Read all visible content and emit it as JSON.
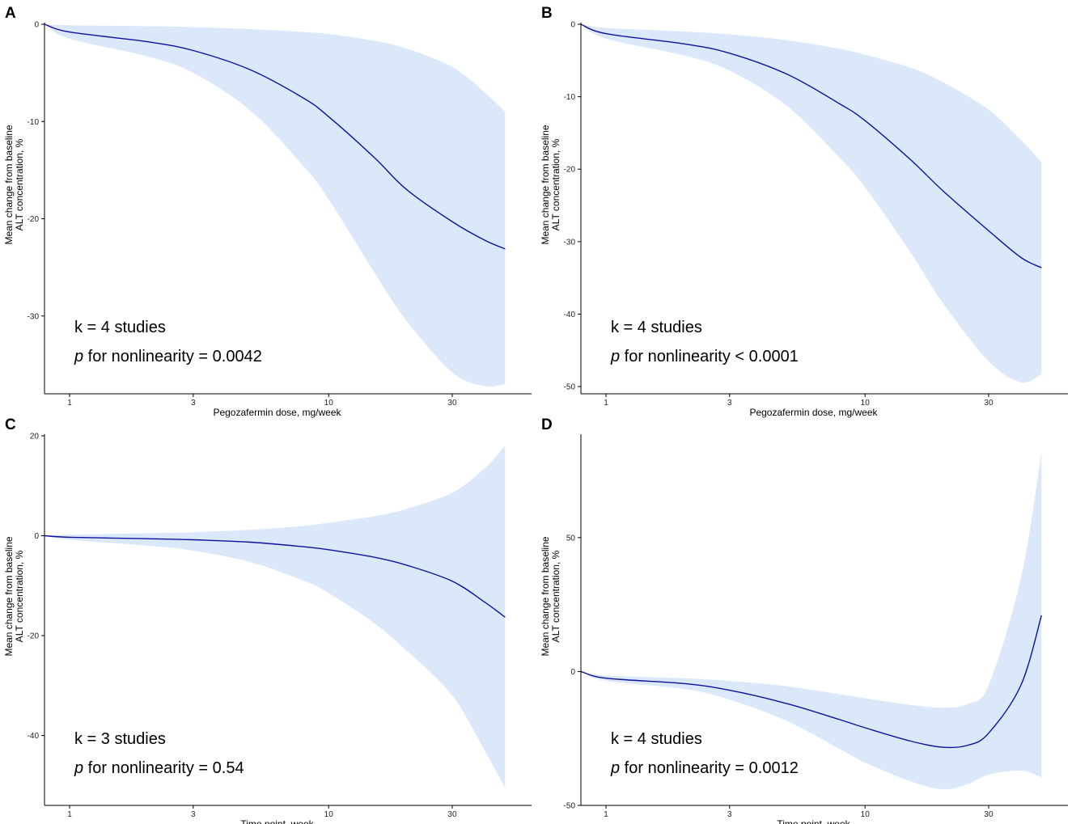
{
  "chart_data": [
    {
      "panel": "A",
      "type": "line",
      "xscale": "log",
      "xlim": [
        0.8,
        50
      ],
      "ylim": [
        -38,
        0
      ],
      "xticks": [
        1,
        3,
        10,
        30
      ],
      "xtick_labels": [
        "1",
        "3",
        "10",
        "30"
      ],
      "yticks": [
        0,
        -10,
        -20,
        -30
      ],
      "ytick_labels": [
        "0",
        "-10",
        "-20",
        "-30"
      ],
      "xlabel": "Pegozafermin dose, mg/week",
      "ylabel_line1": "Mean change from baseline",
      "ylabel_line2": "ALT concentration, %",
      "annotation_k": "k = 4 studies",
      "annotation_p_italic": "p",
      "annotation_p_rest": " for nonlinearity = 0.0042",
      "series": [
        {
          "name": "estimate",
          "x": [
            0.8,
            1,
            2,
            3,
            5,
            8,
            10,
            15,
            20,
            30,
            40,
            48
          ],
          "y": [
            0,
            -0.8,
            -1.8,
            -2.7,
            -4.7,
            -7.6,
            -9.5,
            -13.7,
            -17.0,
            -20.3,
            -22.2,
            -23.1
          ]
        },
        {
          "name": "ci_upper",
          "x": [
            0.8,
            1,
            2,
            3,
            5,
            8,
            10,
            15,
            20,
            30,
            40,
            48
          ],
          "y": [
            0,
            -0.1,
            -0.2,
            -0.3,
            -0.5,
            -0.8,
            -1.0,
            -1.7,
            -2.5,
            -4.4,
            -7.0,
            -9.0
          ]
        },
        {
          "name": "ci_lower",
          "x": [
            0.8,
            1,
            2,
            3,
            5,
            8,
            10,
            15,
            20,
            30,
            40,
            48
          ],
          "y": [
            0,
            -1.5,
            -3.3,
            -5.0,
            -8.9,
            -14.6,
            -18.0,
            -25.5,
            -30.5,
            -35.8,
            -37.2,
            -37.0
          ]
        }
      ]
    },
    {
      "panel": "B",
      "type": "line",
      "xscale": "log",
      "xlim": [
        0.8,
        50
      ],
      "ylim": [
        -51,
        0
      ],
      "xticks": [
        1,
        3,
        10,
        30
      ],
      "xtick_labels": [
        "1",
        "3",
        "10",
        "30"
      ],
      "yticks": [
        0,
        -10,
        -20,
        -30,
        -40,
        -50
      ],
      "ytick_labels": [
        "0",
        "-10",
        "-20",
        "-30",
        "-40",
        "-50"
      ],
      "xlabel": "Pegozafermin dose, mg/week",
      "ylabel_line1": "Mean change from baseline",
      "ylabel_line2": "ALT concentration, %",
      "annotation_k": "k = 4 studies",
      "annotation_p_italic": "p",
      "annotation_p_rest": " for nonlinearity < 0.0001",
      "series": [
        {
          "name": "estimate",
          "x": [
            0.8,
            1,
            2,
            3,
            5,
            8,
            10,
            15,
            20,
            30,
            40,
            48
          ],
          "y": [
            0,
            -1.3,
            -2.7,
            -4.0,
            -6.9,
            -11.0,
            -13.3,
            -18.7,
            -23.0,
            -28.5,
            -32.2,
            -33.6
          ]
        },
        {
          "name": "ci_upper",
          "x": [
            0.8,
            1,
            2,
            3,
            5,
            8,
            10,
            15,
            20,
            30,
            40,
            48
          ],
          "y": [
            0,
            -0.5,
            -1.0,
            -1.4,
            -2.2,
            -3.4,
            -4.2,
            -6.0,
            -8.0,
            -11.8,
            -16.0,
            -19.0
          ]
        },
        {
          "name": "ci_lower",
          "x": [
            0.8,
            1,
            2,
            3,
            5,
            8,
            10,
            15,
            20,
            30,
            40,
            48
          ],
          "y": [
            0,
            -2.0,
            -4.3,
            -6.4,
            -11.3,
            -18.5,
            -22.5,
            -31.5,
            -38.5,
            -46.5,
            -49.4,
            -48.3
          ]
        }
      ]
    },
    {
      "panel": "C",
      "type": "line",
      "xscale": "log",
      "xlim": [
        0.8,
        50
      ],
      "ylim": [
        -54,
        20
      ],
      "xticks": [
        1,
        3,
        10,
        30
      ],
      "xtick_labels": [
        "1",
        "3",
        "10",
        "30"
      ],
      "yticks": [
        20,
        0,
        -20,
        -40
      ],
      "ytick_labels": [
        "20",
        "0",
        "-20",
        "-40"
      ],
      "xlabel": "Time point, week",
      "ylabel_line1": "Mean change from baseline",
      "ylabel_line2": "ALT concentration, %",
      "annotation_k": "k = 3 studies",
      "annotation_p_italic": "p",
      "annotation_p_rest": " for nonlinearity = 0.54",
      "series": [
        {
          "name": "estimate",
          "x": [
            0.8,
            1,
            2,
            3,
            5,
            8,
            10,
            15,
            20,
            30,
            40,
            48
          ],
          "y": [
            0,
            -0.3,
            -0.6,
            -0.8,
            -1.3,
            -2.2,
            -2.8,
            -4.3,
            -5.9,
            -9.1,
            -13.3,
            -16.3
          ]
        },
        {
          "name": "ci_upper",
          "x": [
            0.8,
            1,
            2,
            3,
            5,
            8,
            10,
            15,
            20,
            30,
            40,
            48
          ],
          "y": [
            0,
            0.2,
            0.5,
            0.7,
            1.2,
            2.0,
            2.6,
            3.9,
            5.4,
            8.6,
            13.5,
            18.0
          ]
        },
        {
          "name": "ci_lower",
          "x": [
            0.8,
            1,
            2,
            3,
            5,
            8,
            10,
            15,
            20,
            30,
            40,
            48
          ],
          "y": [
            0,
            -0.8,
            -2.0,
            -3.0,
            -5.3,
            -9.0,
            -11.5,
            -17.5,
            -23.0,
            -32.0,
            -43.0,
            -50.5
          ]
        }
      ]
    },
    {
      "panel": "D",
      "type": "line",
      "xscale": "log",
      "xlim": [
        0.8,
        50
      ],
      "ylim": [
        -50,
        88
      ],
      "xticks": [
        1,
        3,
        10,
        30
      ],
      "xtick_labels": [
        "1",
        "3",
        "10",
        "30"
      ],
      "yticks": [
        50,
        0,
        -50
      ],
      "ytick_labels": [
        "50",
        "0",
        "-50"
      ],
      "xlabel": "Time point, week",
      "ylabel_line1": "Mean change from baseline",
      "ylabel_line2": "ALT concentration, %",
      "annotation_k": "k = 4 studies",
      "annotation_p_italic": "p",
      "annotation_p_rest": " for nonlinearity = 0.0012",
      "series": [
        {
          "name": "estimate",
          "x": [
            0.8,
            1,
            2,
            3,
            5,
            8,
            10,
            15,
            20,
            25,
            30,
            40,
            48
          ],
          "y": [
            0,
            -2.5,
            -4.5,
            -7.0,
            -12.0,
            -18.0,
            -21.0,
            -26.0,
            -28.3,
            -27.5,
            -23.0,
            -5.0,
            21.0
          ]
        },
        {
          "name": "ci_upper",
          "x": [
            0.8,
            1,
            2,
            3,
            5,
            8,
            10,
            15,
            20,
            25,
            30,
            40,
            48
          ],
          "y": [
            0,
            -1.5,
            -2.5,
            -3.5,
            -5.5,
            -8.5,
            -10.0,
            -12.5,
            -13.5,
            -12.0,
            -5.0,
            35.0,
            82.0
          ]
        },
        {
          "name": "ci_lower",
          "x": [
            0.8,
            1,
            2,
            3,
            5,
            8,
            10,
            15,
            20,
            25,
            30,
            40,
            48
          ],
          "y": [
            0,
            -3.5,
            -6.5,
            -10.5,
            -18.5,
            -29.0,
            -34.0,
            -41.0,
            -44.0,
            -42.0,
            -38.5,
            -37.0,
            -39.5
          ]
        }
      ]
    }
  ],
  "colors": {
    "line": "#1010a0",
    "band": "#dae8f9",
    "axis": "#000000"
  }
}
